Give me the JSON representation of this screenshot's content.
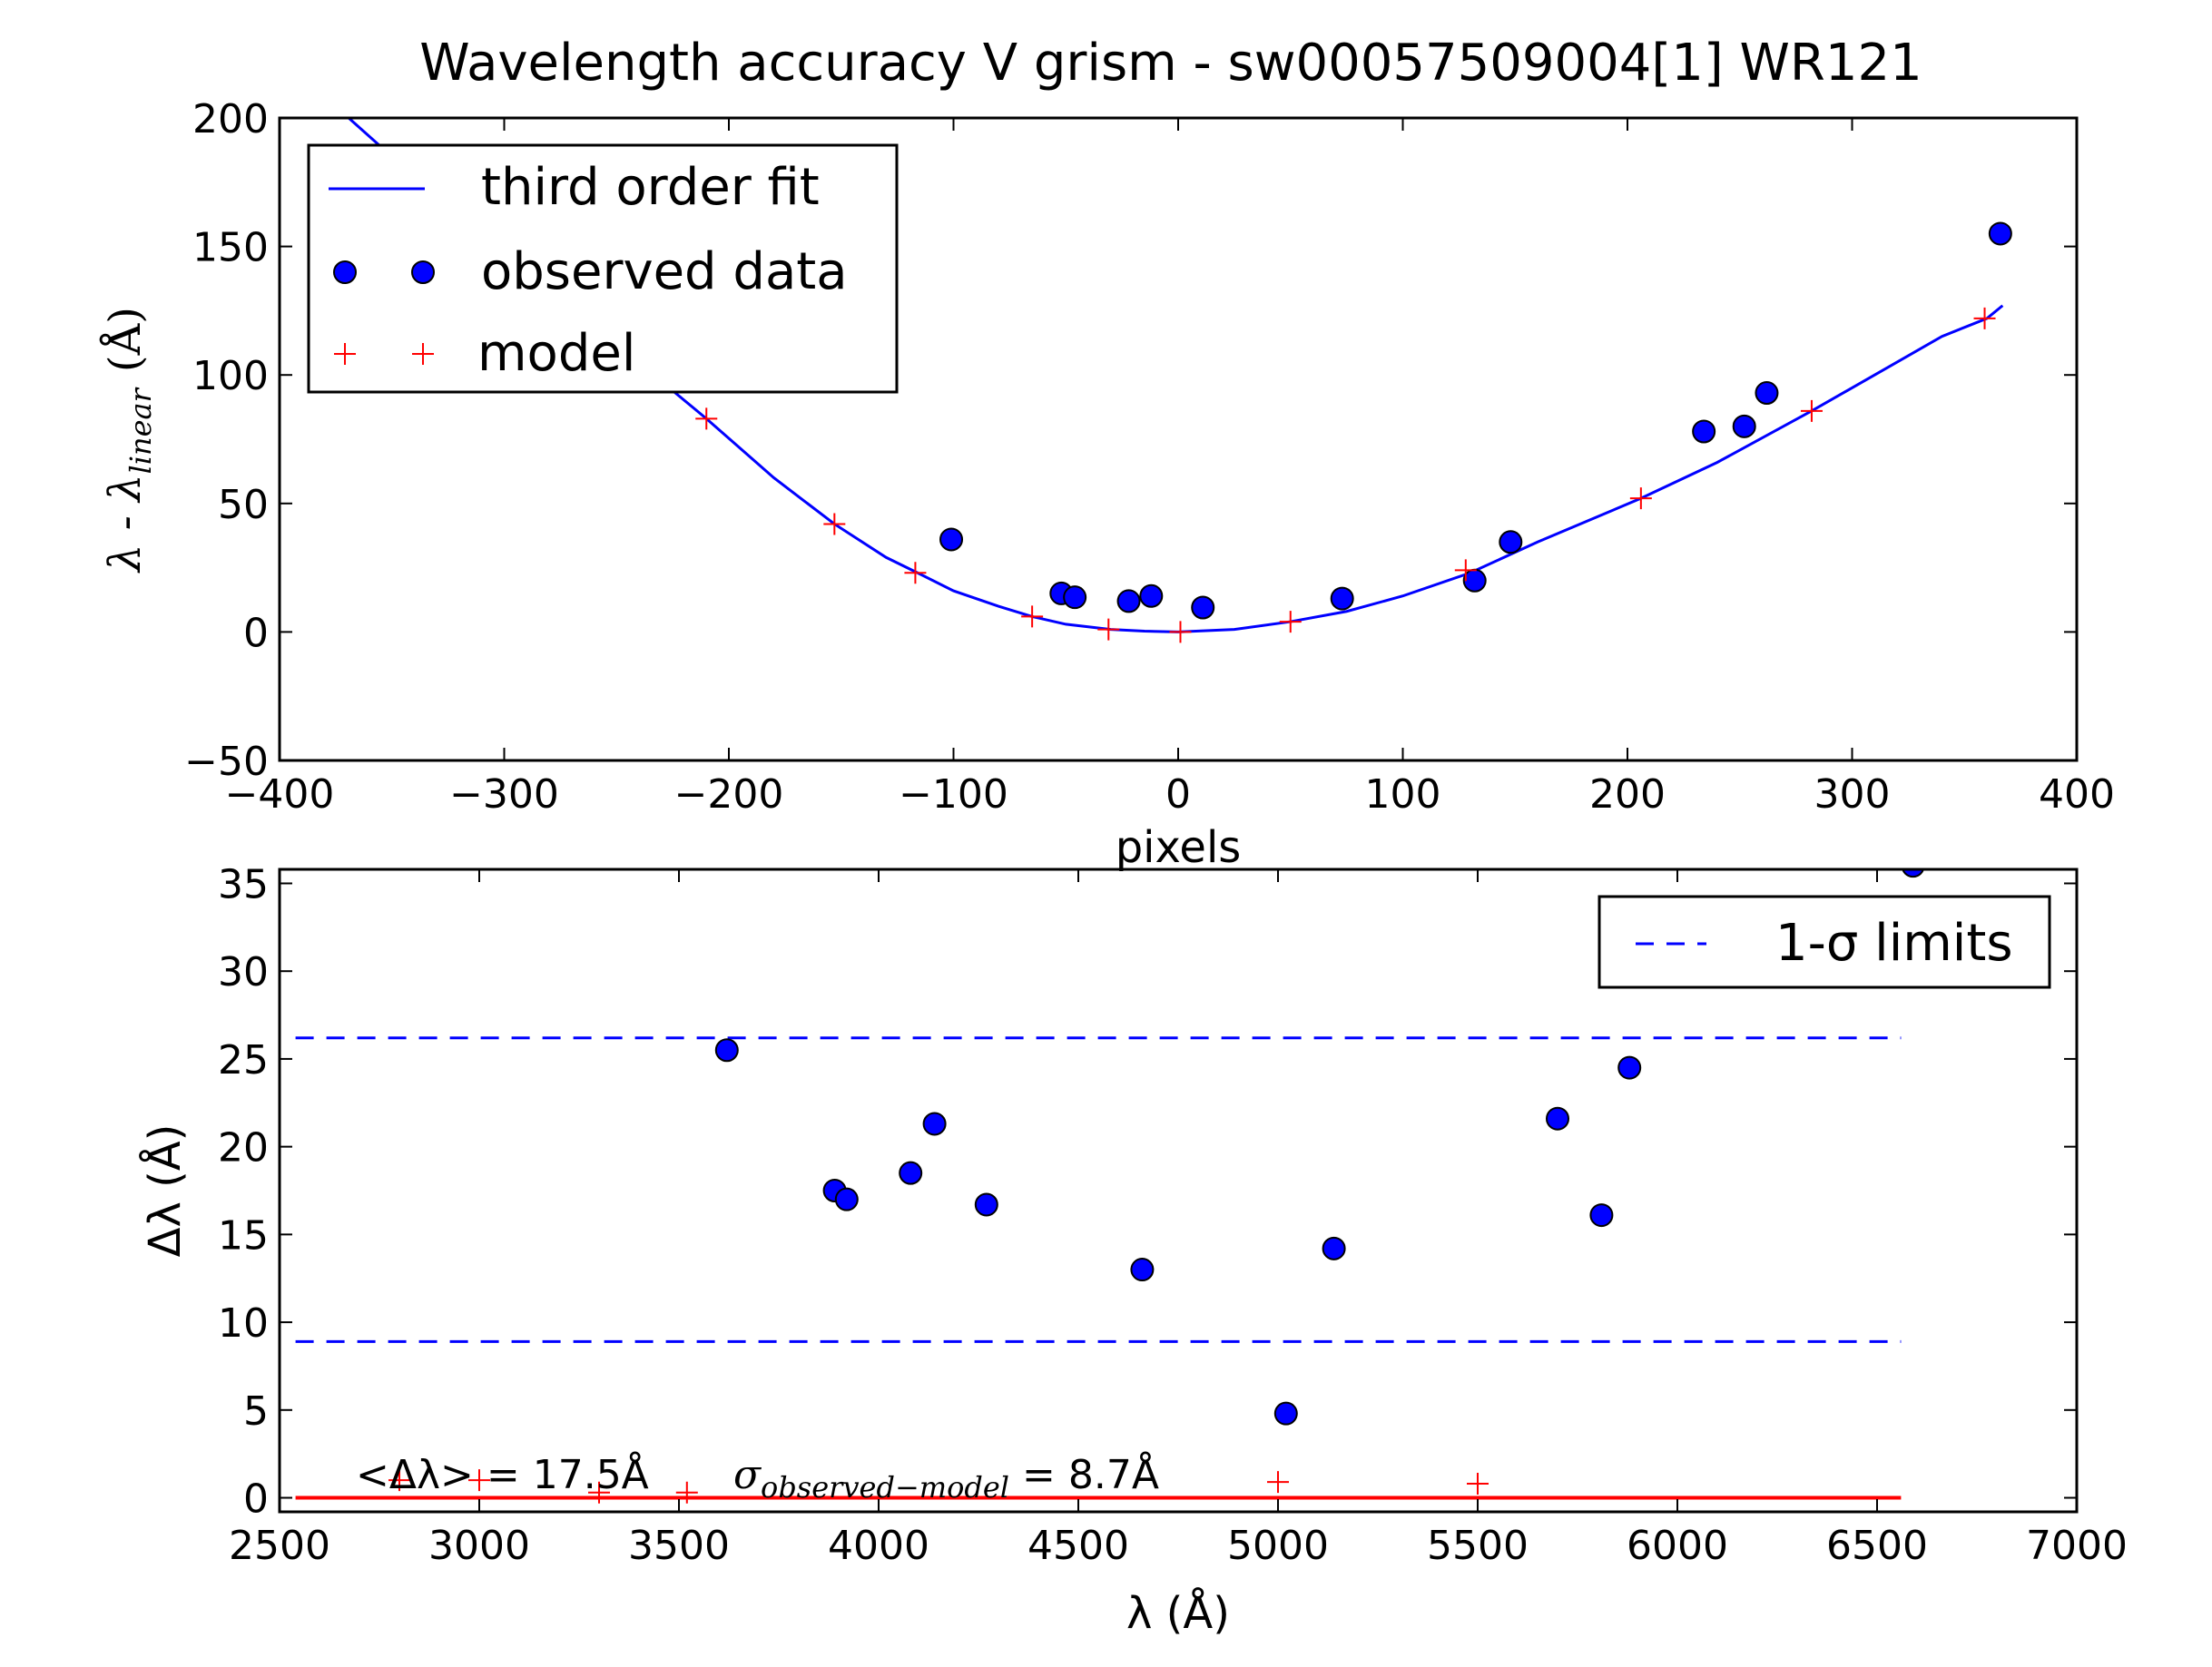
{
  "chart_data": [
    {
      "type": "line",
      "title": "Wavelength accuracy V grism - sw00057509004[1] WR121",
      "xlabel": "pixels",
      "ylabel": "λ - λ",
      "ylabel_sub": "linear",
      "ylabel_unit": "(Å)",
      "xlim": [
        -400,
        400
      ],
      "ylim": [
        -50,
        200
      ],
      "xticks": [
        -400,
        -300,
        -200,
        -100,
        0,
        100,
        200,
        300,
        400
      ],
      "yticks": [
        -50,
        0,
        50,
        100,
        150,
        200
      ],
      "xtick_labels": [
        "−400",
        "−300",
        "−200",
        "−100",
        "0",
        "100",
        "200",
        "300",
        "400"
      ],
      "ytick_labels": [
        "−50",
        "0",
        "50",
        "100",
        "150",
        "200"
      ],
      "legend_position": "top-left",
      "legend": [
        "third order fit",
        "observed data",
        "model"
      ],
      "series": [
        {
          "name": "third order fit",
          "kind": "line",
          "color": "#0000ff",
          "x": [
            -400,
            -350,
            -300,
            -250,
            -210,
            -180,
            -153,
            -130,
            -116,
            -100,
            -80,
            -65,
            -50,
            -30,
            -15,
            0,
            25,
            50,
            75,
            100,
            130,
            160,
            206,
            240,
            282,
            320,
            340,
            360,
            367
          ],
          "y": [
            224,
            185,
            150,
            112,
            83,
            60,
            42,
            29,
            23,
            16,
            10,
            6,
            3,
            1,
            0.3,
            0,
            1,
            4,
            8,
            14,
            23,
            35,
            52,
            66,
            86,
            105,
            115,
            122,
            127
          ]
        },
        {
          "name": "observed data",
          "kind": "points",
          "color": "#0000ff",
          "x": [
            -101,
            -52,
            -46,
            -22,
            -12,
            11,
            73,
            132,
            148,
            234,
            252,
            262,
            366
          ],
          "y": [
            36,
            15,
            13.5,
            12,
            14,
            9.5,
            13,
            20,
            35,
            78,
            80,
            93,
            155
          ]
        },
        {
          "name": "model",
          "kind": "plus",
          "color": "#ff0000",
          "x": [
            -210,
            -153,
            -117,
            -65,
            -31,
            1,
            50,
            128,
            206,
            282,
            359
          ],
          "y": [
            83,
            42,
            23,
            6,
            1,
            0,
            4,
            24,
            52,
            86,
            122
          ]
        }
      ]
    },
    {
      "type": "scatter",
      "title": "",
      "xlabel": "λ (Å)",
      "ylabel": "Δλ (Å)",
      "xlim": [
        2500,
        7000
      ],
      "ylim": [
        -0.8,
        35.8
      ],
      "xticks": [
        2500,
        3000,
        3500,
        4000,
        4500,
        5000,
        5500,
        6000,
        6500,
        7000
      ],
      "yticks": [
        0,
        5,
        10,
        15,
        20,
        25,
        30,
        35
      ],
      "legend_position": "top-right",
      "legend": [
        "1-σ limits"
      ],
      "annotation_mean": "<Δλ> = 17.5Å",
      "annotation_sigma_symbol": "σ",
      "annotation_sigma_sub": "observed−model",
      "annotation_sigma_value": "= 8.7Å",
      "sigma_limits": [
        26.2,
        8.9
      ],
      "sigma_limit_xrange": [
        2540,
        6560
      ],
      "zero_line_color": "#ff0000",
      "zero_line_xrange": [
        2540,
        6560
      ],
      "series": [
        {
          "name": "observed data",
          "kind": "points",
          "color": "#0000ff",
          "x": [
            3620,
            3890,
            3920,
            4080,
            4140,
            4270,
            4660,
            5020,
            5140,
            5700,
            5810,
            5880,
            6590
          ],
          "y": [
            25.5,
            17.5,
            17.0,
            18.5,
            21.3,
            16.7,
            13.0,
            4.8,
            14.2,
            21.6,
            16.1,
            24.5,
            36.0
          ]
        },
        {
          "name": "model",
          "kind": "plus",
          "color": "#ff0000",
          "x": [
            2800,
            3000,
            3300,
            3520,
            5000,
            5500
          ],
          "y": [
            1.0,
            1.0,
            0.3,
            0.3,
            0.9,
            0.8
          ]
        }
      ]
    }
  ]
}
